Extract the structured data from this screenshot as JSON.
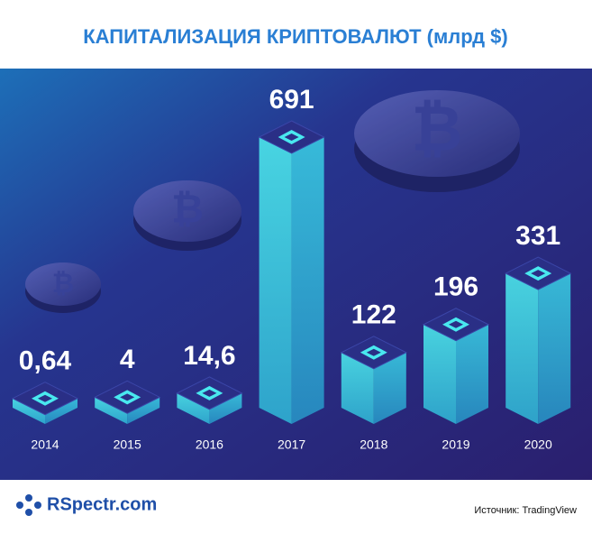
{
  "chart_data": {
    "type": "bar",
    "title": "КАПИТАЛИЗАЦИЯ КРИПТОВАЛЮТ (млрд $)",
    "categories": [
      "2014",
      "2015",
      "2016",
      "2017",
      "2018",
      "2019",
      "2020"
    ],
    "values": [
      0.64,
      4,
      14.6,
      691,
      122,
      196,
      331
    ],
    "value_labels": [
      "0,64",
      "4",
      "14,6",
      "691",
      "122",
      "196",
      "331"
    ],
    "color": "#3de0e8",
    "source": "Источник:  TradingView",
    "logo": "RSpectr.com"
  }
}
